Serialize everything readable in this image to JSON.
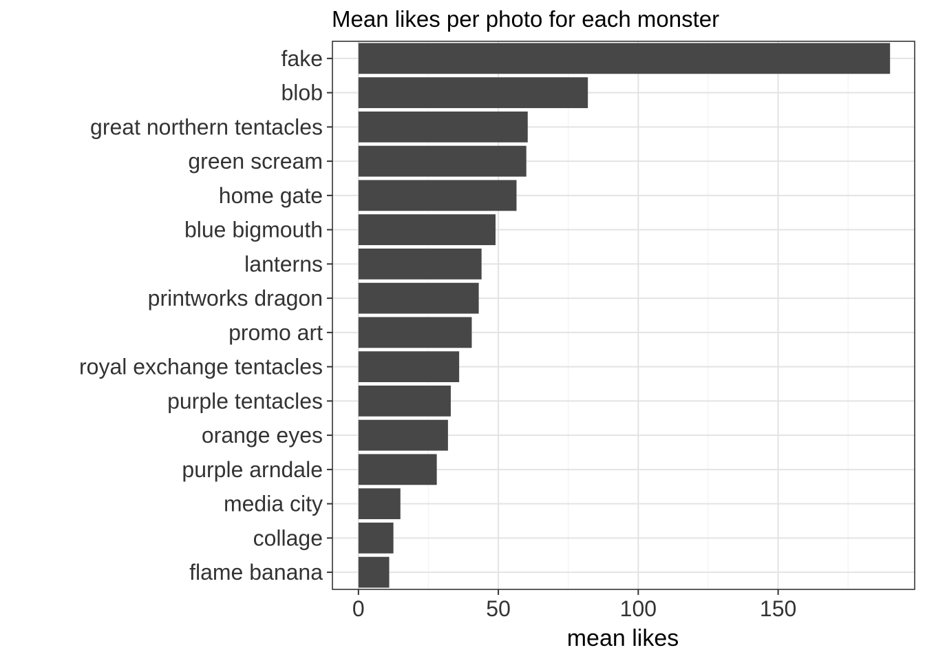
{
  "chart_data": {
    "type": "bar",
    "orientation": "horizontal",
    "title": "Mean likes per photo for each monster",
    "xlabel": "mean likes",
    "ylabel": "",
    "categories": [
      "fake",
      "blob",
      "great northern tentacles",
      "green scream",
      "home gate",
      "blue bigmouth",
      "lanterns",
      "printworks dragon",
      "promo art",
      "royal exchange tentacles",
      "purple tentacles",
      "orange eyes",
      "purple arndale",
      "media city",
      "collage",
      "flame banana"
    ],
    "values": [
      190,
      82,
      60.5,
      60,
      56.5,
      49,
      44,
      43,
      40.5,
      36,
      33,
      32,
      28,
      15,
      12.5,
      11
    ],
    "xlim": [
      -9.3,
      198.8
    ],
    "xticks": [
      0,
      50,
      100,
      150
    ],
    "xtick_labels": [
      "0",
      "50",
      "100",
      "150"
    ],
    "grid": true,
    "theme": "bw",
    "colors": {
      "bar": "#474747",
      "grid_major": "#e3e3e3",
      "grid_minor": "#f2f2f2",
      "panel_border": "#333333",
      "tick": "#333333"
    }
  }
}
